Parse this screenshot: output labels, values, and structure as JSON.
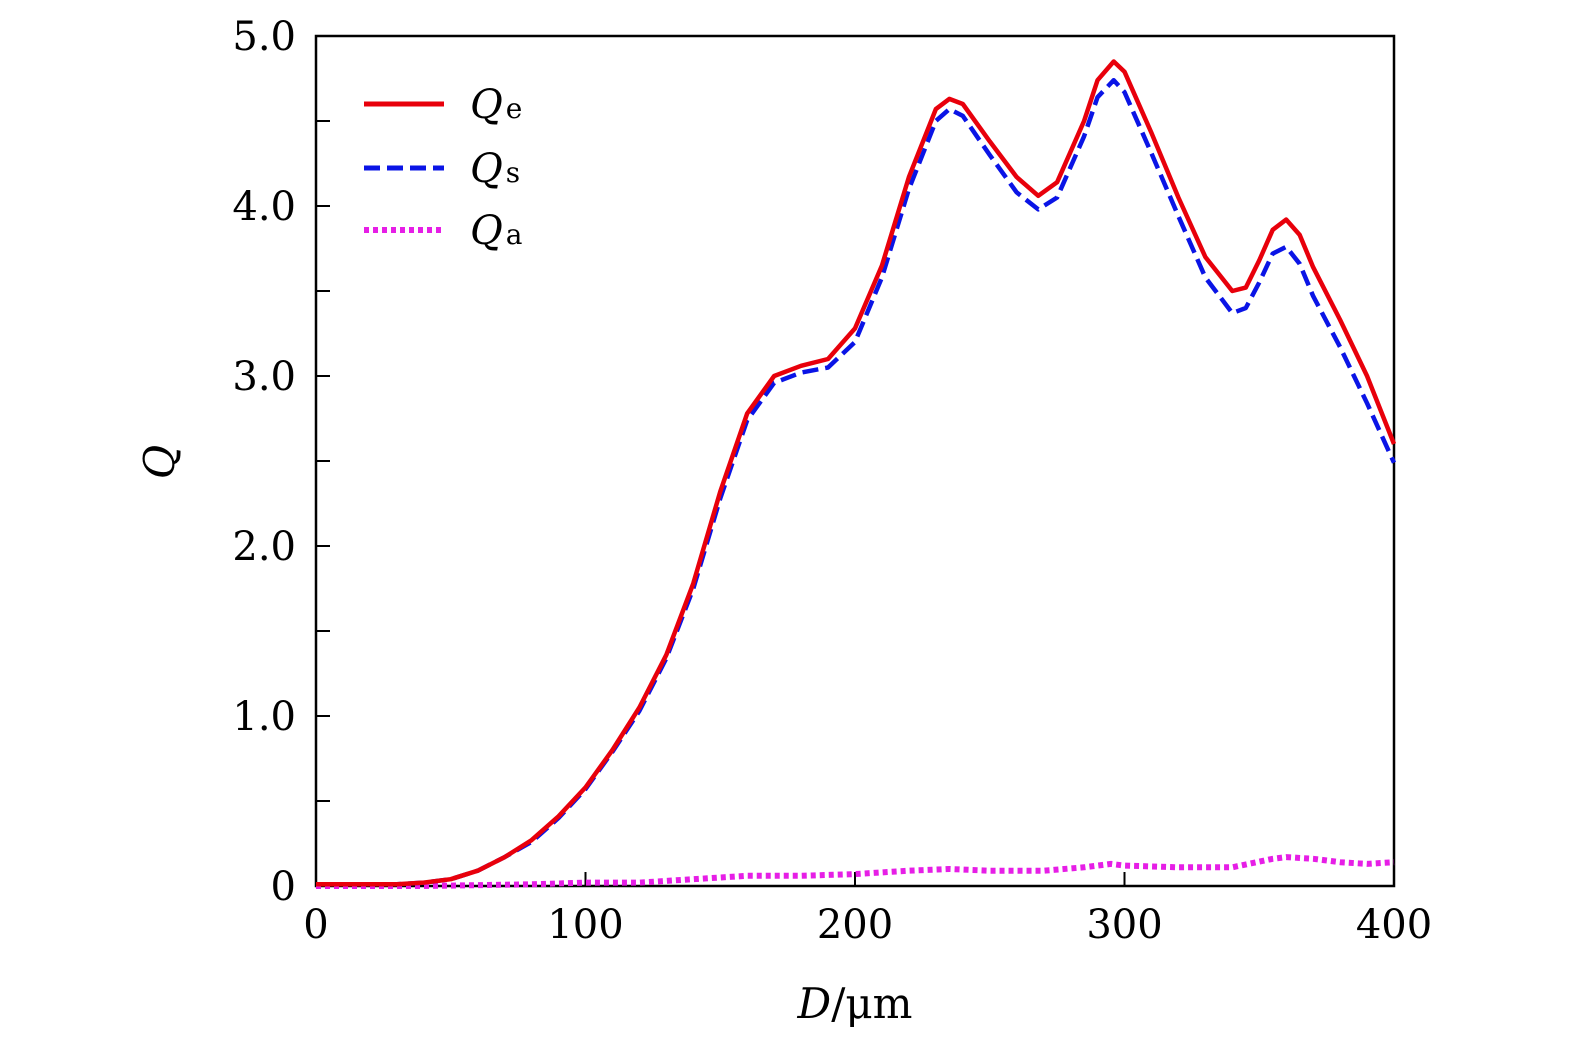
{
  "chart_data": {
    "type": "line",
    "title": "",
    "xlabel": {
      "symbol": "D",
      "unit": "/μm"
    },
    "ylabel": "Q",
    "xlim": [
      0,
      400
    ],
    "ylim": [
      0,
      5.0
    ],
    "xticks": [
      0,
      100,
      200,
      300,
      400
    ],
    "xtick_labels": [
      "0",
      "100",
      "200",
      "300",
      "400"
    ],
    "yticks": [
      0,
      1.0,
      2.0,
      3.0,
      4.0,
      5.0
    ],
    "ytick_labels": [
      "0",
      "1.0",
      "2.0",
      "3.0",
      "4.0",
      "5.0"
    ],
    "yminor_ticks": [
      0.5,
      1.5,
      2.5,
      3.5,
      4.5
    ],
    "grid": false,
    "legend_position": "top-left",
    "series": [
      {
        "name": "Q",
        "subscript": "e",
        "color": "#e8000b",
        "style": "solid",
        "x": [
          0,
          20,
          30,
          40,
          50,
          60,
          70,
          80,
          90,
          100,
          110,
          120,
          130,
          140,
          150,
          160,
          170,
          180,
          190,
          200,
          210,
          220,
          230,
          235,
          240,
          250,
          260,
          268,
          275,
          285,
          290,
          296,
          300,
          310,
          320,
          330,
          340,
          345,
          350,
          355,
          360,
          365,
          370,
          380,
          390,
          400
        ],
        "y": [
          0.01,
          0.01,
          0.01,
          0.02,
          0.04,
          0.09,
          0.17,
          0.27,
          0.41,
          0.58,
          0.8,
          1.05,
          1.36,
          1.78,
          2.32,
          2.78,
          3.0,
          3.06,
          3.1,
          3.28,
          3.65,
          4.17,
          4.57,
          4.63,
          4.6,
          4.38,
          4.17,
          4.06,
          4.14,
          4.5,
          4.74,
          4.85,
          4.79,
          4.43,
          4.05,
          3.7,
          3.5,
          3.52,
          3.68,
          3.86,
          3.92,
          3.83,
          3.64,
          3.33,
          3.0,
          2.6
        ]
      },
      {
        "name": "Q",
        "subscript": "s",
        "color": "#0a14e6",
        "style": "dashed",
        "x": [
          0,
          20,
          30,
          40,
          50,
          60,
          70,
          80,
          90,
          100,
          110,
          120,
          130,
          140,
          150,
          160,
          170,
          180,
          190,
          200,
          210,
          220,
          230,
          235,
          240,
          250,
          260,
          268,
          275,
          285,
          290,
          296,
          300,
          310,
          320,
          330,
          340,
          345,
          350,
          355,
          360,
          365,
          370,
          380,
          390,
          400
        ],
        "y": [
          0.01,
          0.01,
          0.01,
          0.02,
          0.04,
          0.09,
          0.17,
          0.26,
          0.4,
          0.57,
          0.79,
          1.03,
          1.34,
          1.75,
          2.28,
          2.74,
          2.96,
          3.02,
          3.05,
          3.2,
          3.58,
          4.1,
          4.5,
          4.57,
          4.53,
          4.3,
          4.08,
          3.98,
          4.05,
          4.41,
          4.64,
          4.74,
          4.67,
          4.31,
          3.94,
          3.58,
          3.37,
          3.4,
          3.55,
          3.72,
          3.76,
          3.66,
          3.47,
          3.17,
          2.84,
          2.49
        ]
      },
      {
        "name": "Q",
        "subscript": "a",
        "color": "#e61ee6",
        "style": "dotted",
        "x": [
          0,
          40,
          80,
          100,
          120,
          140,
          160,
          180,
          200,
          220,
          235,
          250,
          270,
          285,
          295,
          300,
          320,
          340,
          355,
          360,
          370,
          380,
          390,
          400
        ],
        "y": [
          0.0,
          0.0,
          0.01,
          0.02,
          0.02,
          0.04,
          0.06,
          0.06,
          0.07,
          0.09,
          0.1,
          0.09,
          0.09,
          0.11,
          0.13,
          0.12,
          0.11,
          0.11,
          0.16,
          0.17,
          0.16,
          0.14,
          0.13,
          0.14
        ]
      }
    ]
  }
}
